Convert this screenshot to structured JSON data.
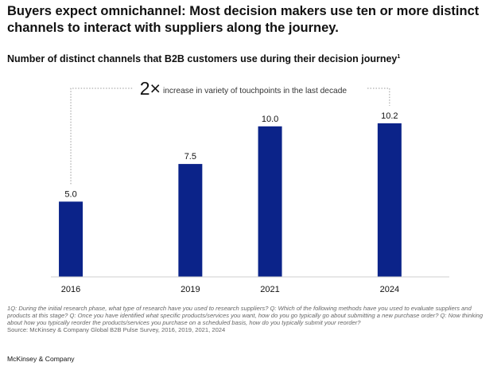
{
  "headline": "Buyers expect omnichannel: Most decision makers use ten or more distinct channels to interact with suppliers along the journey.",
  "subtitle": "Number of distinct channels that B2B customers use during their decision journey",
  "subtitle_note_marker": "1",
  "colors": {
    "bar": "#0b2389",
    "text": "#111111",
    "muted": "#666666",
    "axis": "#cfcfcf",
    "bracket": "#999999"
  },
  "chart_data": {
    "type": "bar",
    "categories": [
      "2016",
      "2019",
      "2021",
      "2024"
    ],
    "values": [
      5.0,
      7.5,
      10.0,
      10.2
    ],
    "value_labels": [
      "5.0",
      "7.5",
      "10.0",
      "10.2"
    ],
    "ylim": [
      0,
      10.2
    ],
    "grid": false,
    "xlabel": "",
    "ylabel": "",
    "annotation": {
      "big": "2×",
      "text": "increase in variety of touchpoints in the last decade",
      "from": "2016",
      "to": "2024"
    }
  },
  "footnote": {
    "marker": "1",
    "questions": "Q: During the initial research phase, what type of research have you used to research suppliers? Q: Which of the following methods have you used to evaluate suppliers and products at this stage? Q: Once you have identified what specific products/services you want, how do you go typically go about submitting a new purchase order? Q: Now thinking about how you typically reorder the products/services you purchase on a scheduled basis, how do you typically submit your reorder?",
    "source": "Source: McKinsey & Company Global B2B Pulse Survey, 2016, 2019, 2021, 2024"
  },
  "brand": "McKinsey & Company"
}
